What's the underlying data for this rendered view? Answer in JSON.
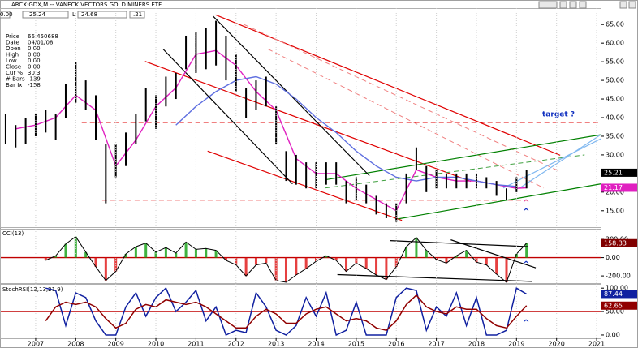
{
  "header": {
    "title": "ARCX:GDX,M -- VANECK VECTORS GOLD MINERS ETF",
    "fields": [
      "0.00",
      "25.24",
      "L",
      "24.68",
      ".21"
    ]
  },
  "info": {
    "rows": [
      [
        "Price",
        "66.450688"
      ],
      [
        "Date",
        "04/01/08"
      ],
      [
        "Open",
        "0.00"
      ],
      [
        "High",
        "0.00"
      ],
      [
        "Low",
        "0.00"
      ],
      [
        "Close",
        "0.00"
      ],
      [
        "Cur %",
        "30.3"
      ],
      [
        "# Bars",
        "-139"
      ],
      [
        "Bar Ix",
        "-158"
      ]
    ]
  },
  "annotations": {
    "target": "target ?",
    "caret": "^"
  },
  "chart_data": [
    {
      "type": "ohlc",
      "xlim": [
        2006.13,
        2021.1
      ],
      "ylim": [
        10.6,
        69.4
      ],
      "yticks": [
        {
          "value": 15,
          "label": "15.00"
        },
        {
          "value": 20,
          "label": "20.00"
        },
        {
          "value": 25,
          "label": "25.00"
        },
        {
          "value": 30,
          "label": "30.00"
        },
        {
          "value": 35,
          "label": "35.00"
        },
        {
          "value": 40,
          "label": "40.00"
        },
        {
          "value": 45,
          "label": "45.00"
        },
        {
          "value": 50,
          "label": "50.00"
        },
        {
          "value": 55,
          "label": "55.00"
        },
        {
          "value": 60,
          "label": "60.00"
        },
        {
          "value": 65,
          "label": "65.00"
        }
      ],
      "color": "#000000",
      "x": [
        2006.25,
        2006.5,
        2006.75,
        2007.0,
        2007.25,
        2007.5,
        2007.75,
        2008.0,
        2008.25,
        2008.5,
        2008.75,
        2009.0,
        2009.25,
        2009.5,
        2009.75,
        2010.0,
        2010.25,
        2010.5,
        2010.75,
        2011.0,
        2011.25,
        2011.5,
        2011.75,
        2012.0,
        2012.25,
        2012.5,
        2012.75,
        2013.0,
        2013.25,
        2013.5,
        2013.75,
        2014.0,
        2014.25,
        2014.5,
        2014.75,
        2015.0,
        2015.25,
        2015.5,
        2015.75,
        2016.0,
        2016.25,
        2016.5,
        2016.75,
        2017.0,
        2017.25,
        2017.5,
        2017.75,
        2018.0,
        2018.25,
        2018.5,
        2018.75,
        2019.0,
        2019.25
      ],
      "high": [
        41,
        38,
        40,
        41,
        42,
        41,
        49,
        55,
        50,
        46,
        33,
        33,
        36,
        41,
        48,
        46,
        51,
        52,
        62,
        63,
        64,
        66,
        62,
        57,
        48,
        50,
        51,
        43,
        31,
        30,
        28,
        28,
        28,
        28,
        23,
        24,
        22,
        19,
        17,
        17,
        25,
        32,
        27,
        26,
        25,
        25,
        25,
        25,
        24,
        23,
        21,
        24,
        26
      ],
      "low": [
        33,
        32,
        33,
        35,
        36,
        34,
        40,
        44,
        42,
        34,
        17,
        24,
        27,
        33,
        39,
        37,
        43,
        45,
        53,
        52,
        53,
        54,
        50,
        47,
        40,
        42,
        43,
        33,
        23,
        22,
        21,
        21,
        22,
        22,
        17,
        18,
        17,
        14,
        13,
        12,
        17,
        26,
        20,
        21,
        21,
        21,
        21,
        21,
        21,
        19,
        18,
        20,
        21
      ],
      "last": 25.21,
      "series": [
        {
          "color": "#e020c0",
          "x": [
            2006.5,
            2007.0,
            2007.5,
            2008.0,
            2008.5,
            2009.0,
            2009.5,
            2010.0,
            2010.5,
            2011.0,
            2011.5,
            2012.0,
            2012.5,
            2013.0,
            2013.5,
            2014.0,
            2014.5,
            2015.0,
            2015.5,
            2016.0,
            2016.5,
            2017.0,
            2017.5,
            2018.0,
            2018.5,
            2019.0,
            2019.25
          ],
          "values": [
            37,
            38,
            40,
            46,
            42,
            27,
            34,
            43,
            48,
            57,
            58,
            54,
            47,
            42,
            29,
            25,
            25,
            21,
            18,
            15,
            26,
            24,
            23,
            23,
            22,
            21,
            21.17
          ]
        },
        {
          "color": "#6070e0",
          "x": [
            2010.5,
            2011.0,
            2011.5,
            2012.0,
            2012.5,
            2013.0,
            2013.5,
            2014.0,
            2014.5,
            2015.0,
            2015.5,
            2016.0,
            2016.5,
            2017.0,
            2017.5,
            2018.0,
            2018.5,
            2019.0
          ],
          "values": [
            38,
            43,
            47,
            50,
            51,
            49,
            45,
            40,
            36,
            31,
            27,
            24,
            23,
            24,
            24,
            23,
            22,
            21.5
          ]
        }
      ],
      "lines": [
        {
          "x": [
            2011.49,
            2020.09
          ],
          "y": [
            67.6,
            29.9
          ],
          "color": "#e00000",
          "dash": false
        },
        {
          "x": [
            2009.73,
            2017.86
          ],
          "y": [
            55.1,
            22.9
          ],
          "color": "#e00000",
          "dash": false
        },
        {
          "x": [
            2011.29,
            2016.14
          ],
          "y": [
            31.0,
            12.4
          ],
          "color": "#e00000",
          "dash": false
        },
        {
          "x": [
            2012.2,
            2020.09
          ],
          "y": [
            65.0,
            25.5
          ],
          "color": "#f08080",
          "dash": true
        },
        {
          "x": [
            2012.8,
            2019.68
          ],
          "y": [
            58.4,
            21.1
          ],
          "color": "#f08080",
          "dash": true
        },
        {
          "x": [
            2008.15,
            2021.1
          ],
          "y": [
            38.7,
            38.7
          ],
          "color": "#e00000",
          "dash": true
        },
        {
          "x": [
            2008.66,
            2019.28
          ],
          "y": [
            17.8,
            17.8
          ],
          "color": "#f08080",
          "dash": true
        },
        {
          "x": [
            2016.04,
            2021.1
          ],
          "y": [
            12.8,
            22.2
          ],
          "color": "#008000",
          "dash": false
        },
        {
          "x": [
            2014.22,
            2021.1
          ],
          "y": [
            23.3,
            35.4
          ],
          "color": "#008000",
          "dash": false
        },
        {
          "x": [
            2014.22,
            2020.7
          ],
          "y": [
            21.1,
            30.0
          ],
          "color": "#40a040",
          "dash": true
        },
        {
          "x": [
            2011.43,
            2015.33
          ],
          "y": [
            67.2,
            24.4
          ],
          "color": "#000000",
          "dash": false
        },
        {
          "x": [
            2010.18,
            2013.41
          ],
          "y": [
            58.4,
            22.2
          ],
          "color": "#000000",
          "dash": false
        },
        {
          "x": [
            2019.08,
            2021.1
          ],
          "y": [
            21.1,
            35.4
          ],
          "color": "#80b8f0",
          "dash": false
        },
        {
          "x": [
            2018.67,
            2021.1
          ],
          "y": [
            21.1,
            34.3
          ],
          "color": "#80b8f0",
          "dash": false
        }
      ]
    },
    {
      "type": "histogram-osc",
      "title": "CCI(13)",
      "xlim": [
        2006.13,
        2021.1
      ],
      "ylim": [
        -279,
        316
      ],
      "yticks": [
        {
          "value": -200,
          "label": "-200.00"
        },
        {
          "value": 0,
          "label": "0.00"
        },
        {
          "value": 200,
          "label": "200.00"
        }
      ],
      "hline": 0,
      "hline_color": "#c00000",
      "pos_color": "#10a010",
      "neg_color": "#e01010",
      "color": "#000000",
      "last_color": "#800000",
      "x": [
        2006.25,
        2006.5,
        2006.75,
        2007.0,
        2007.25,
        2007.5,
        2007.75,
        2008.0,
        2008.25,
        2008.5,
        2008.75,
        2009.0,
        2009.25,
        2009.5,
        2009.75,
        2010.0,
        2010.25,
        2010.5,
        2010.75,
        2011.0,
        2011.25,
        2011.5,
        2011.75,
        2012.0,
        2012.25,
        2012.5,
        2012.75,
        2013.0,
        2013.25,
        2013.5,
        2013.75,
        2014.0,
        2014.25,
        2014.5,
        2014.75,
        2015.0,
        2015.25,
        2015.5,
        2015.75,
        2016.0,
        2016.25,
        2016.5,
        2016.75,
        2017.0,
        2017.25,
        2017.5,
        2017.75,
        2018.0,
        2018.25,
        2018.5,
        2018.75,
        2019.0,
        2019.25
      ],
      "values": [
        null,
        null,
        null,
        null,
        -30,
        20,
        150,
        230,
        60,
        -100,
        -250,
        -150,
        40,
        120,
        160,
        60,
        110,
        50,
        170,
        90,
        100,
        80,
        -30,
        -80,
        -200,
        -80,
        -60,
        -250,
        -270,
        -190,
        -120,
        -40,
        20,
        -30,
        -150,
        -60,
        -120,
        -190,
        -240,
        -100,
        120,
        220,
        80,
        -20,
        -60,
        20,
        80,
        -50,
        -80,
        -180,
        -270,
        40,
        158.33
      ],
      "lines": [
        {
          "x": [
            2015.84,
            2019.28
          ],
          "y": [
            186,
            121
          ],
          "color": "#000000",
          "dash": false
        },
        {
          "x": [
            2017.36,
            2019.48
          ],
          "y": [
            195,
            -112
          ],
          "color": "#000000",
          "dash": false
        },
        {
          "x": [
            2014.53,
            2019.38
          ],
          "y": [
            -186,
            -260
          ],
          "color": "#000000",
          "dash": false
        }
      ]
    },
    {
      "type": "line",
      "title": "StochRSI(13,13,21,9)",
      "xlim": [
        2006.13,
        2021.1
      ],
      "ylim": [
        -7,
        109
      ],
      "yticks": [
        {
          "value": 0,
          "label": "0.00"
        },
        {
          "value": 50,
          "label": "50.00"
        },
        {
          "value": 100,
          "label": "100.00"
        }
      ],
      "xticks": [
        2007,
        2008,
        2009,
        2010,
        2011,
        2012,
        2013,
        2014,
        2015,
        2016,
        2017,
        2018,
        2019,
        2020,
        2021
      ],
      "hline": 50,
      "hline_color": "#c00000",
      "grid": true,
      "x": [
        2006.25,
        2006.5,
        2006.75,
        2007.0,
        2007.25,
        2007.5,
        2007.75,
        2008.0,
        2008.25,
        2008.5,
        2008.75,
        2009.0,
        2009.25,
        2009.5,
        2009.75,
        2010.0,
        2010.25,
        2010.5,
        2010.75,
        2011.0,
        2011.25,
        2011.5,
        2011.75,
        2012.0,
        2012.25,
        2012.5,
        2012.75,
        2013.0,
        2013.25,
        2013.5,
        2013.75,
        2014.0,
        2014.25,
        2014.5,
        2014.75,
        2015.0,
        2015.25,
        2015.5,
        2015.75,
        2016.0,
        2016.25,
        2016.5,
        2016.75,
        2017.0,
        2017.25,
        2017.5,
        2017.75,
        2018.0,
        2018.25,
        2018.5,
        2018.75,
        2019.0,
        2019.25
      ],
      "series": [
        {
          "color": "#1020a0",
          "values": [
            null,
            null,
            null,
            null,
            100,
            95,
            20,
            90,
            80,
            30,
            0,
            0,
            60,
            90,
            40,
            80,
            100,
            50,
            70,
            95,
            30,
            60,
            0,
            10,
            5,
            90,
            60,
            10,
            0,
            20,
            80,
            40,
            90,
            0,
            10,
            70,
            0,
            0,
            0,
            80,
            100,
            95,
            10,
            60,
            40,
            90,
            20,
            80,
            0,
            0,
            10,
            100,
            87.44
          ]
        },
        {
          "color": "#900000",
          "values": [
            null,
            null,
            null,
            null,
            30,
            60,
            70,
            65,
            70,
            60,
            35,
            15,
            25,
            55,
            65,
            60,
            75,
            70,
            65,
            70,
            60,
            45,
            30,
            15,
            15,
            40,
            55,
            45,
            25,
            25,
            45,
            55,
            60,
            45,
            30,
            35,
            30,
            15,
            10,
            30,
            65,
            85,
            60,
            50,
            45,
            60,
            55,
            55,
            35,
            20,
            15,
            40,
            62.65
          ]
        }
      ]
    }
  ]
}
